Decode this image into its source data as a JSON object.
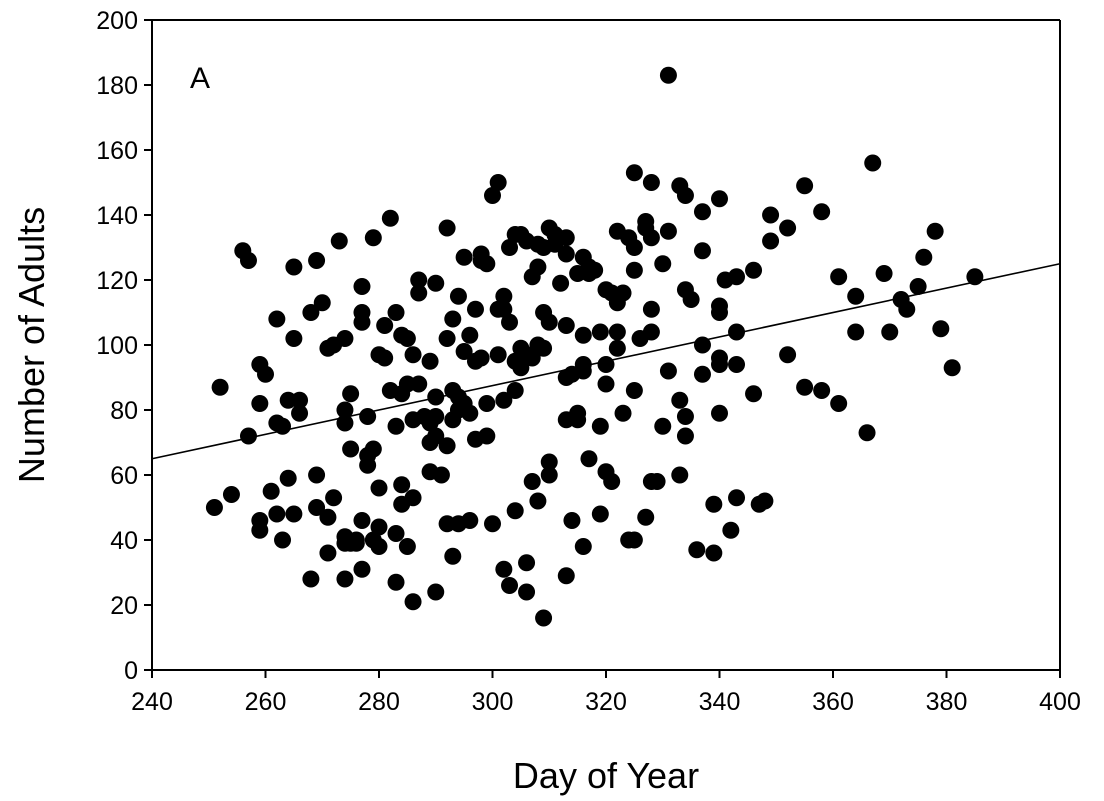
{
  "chart_data": {
    "type": "scatter",
    "panel_label": "A",
    "xlabel": "Day of Year",
    "ylabel": "Number of Adults",
    "xlim": [
      240,
      400
    ],
    "ylim": [
      0,
      200
    ],
    "x_ticks": [
      "240",
      "260",
      "280",
      "300",
      "320",
      "340",
      "360",
      "380",
      "400"
    ],
    "y_ticks": [
      "0",
      "20",
      "40",
      "60",
      "80",
      "100",
      "120",
      "140",
      "160",
      "180",
      "200"
    ],
    "grid": false,
    "legend": "none",
    "marker_color": "#000000",
    "trendline": {
      "x": [
        240,
        400
      ],
      "y": [
        65,
        125
      ]
    },
    "points": [
      [
        251,
        50
      ],
      [
        252,
        87
      ],
      [
        254,
        54
      ],
      [
        256,
        129
      ],
      [
        257,
        126
      ],
      [
        257,
        72
      ],
      [
        259,
        94
      ],
      [
        259,
        82
      ],
      [
        259,
        46
      ],
      [
        259,
        43
      ],
      [
        260,
        91
      ],
      [
        261,
        55
      ],
      [
        262,
        108
      ],
      [
        262,
        76
      ],
      [
        262,
        48
      ],
      [
        263,
        75
      ],
      [
        263,
        40
      ],
      [
        264,
        83
      ],
      [
        264,
        59
      ],
      [
        265,
        124
      ],
      [
        265,
        102
      ],
      [
        265,
        48
      ],
      [
        266,
        83
      ],
      [
        266,
        79
      ],
      [
        268,
        28
      ],
      [
        268,
        110
      ],
      [
        269,
        126
      ],
      [
        269,
        60
      ],
      [
        269,
        50
      ],
      [
        270,
        113
      ],
      [
        271,
        99
      ],
      [
        271,
        47
      ],
      [
        271,
        36
      ],
      [
        272,
        100
      ],
      [
        272,
        53
      ],
      [
        273,
        132
      ],
      [
        274,
        102
      ],
      [
        274,
        80
      ],
      [
        274,
        76
      ],
      [
        274,
        41
      ],
      [
        274,
        39
      ],
      [
        274,
        28
      ],
      [
        275,
        85
      ],
      [
        275,
        68
      ],
      [
        275,
        39
      ],
      [
        276,
        40
      ],
      [
        276,
        39
      ],
      [
        277,
        118
      ],
      [
        277,
        110
      ],
      [
        277,
        107
      ],
      [
        277,
        46
      ],
      [
        277,
        31
      ],
      [
        278,
        78
      ],
      [
        278,
        66
      ],
      [
        278,
        63
      ],
      [
        279,
        133
      ],
      [
        279,
        68
      ],
      [
        279,
        40
      ],
      [
        280,
        97
      ],
      [
        280,
        56
      ],
      [
        280,
        44
      ],
      [
        280,
        38
      ],
      [
        281,
        106
      ],
      [
        281,
        96
      ],
      [
        282,
        139
      ],
      [
        282,
        86
      ],
      [
        283,
        110
      ],
      [
        283,
        75
      ],
      [
        283,
        42
      ],
      [
        283,
        27
      ],
      [
        284,
        103
      ],
      [
        284,
        85
      ],
      [
        284,
        57
      ],
      [
        284,
        51
      ],
      [
        285,
        102
      ],
      [
        285,
        88
      ],
      [
        285,
        38
      ],
      [
        286,
        97
      ],
      [
        286,
        77
      ],
      [
        286,
        53
      ],
      [
        286,
        21
      ],
      [
        287,
        120
      ],
      [
        287,
        116
      ],
      [
        287,
        88
      ],
      [
        288,
        78
      ],
      [
        289,
        95
      ],
      [
        289,
        76
      ],
      [
        289,
        70
      ],
      [
        289,
        61
      ],
      [
        290,
        119
      ],
      [
        290,
        84
      ],
      [
        290,
        78
      ],
      [
        290,
        72
      ],
      [
        290,
        24
      ],
      [
        291,
        60
      ],
      [
        292,
        136
      ],
      [
        292,
        102
      ],
      [
        292,
        69
      ],
      [
        292,
        45
      ],
      [
        293,
        108
      ],
      [
        293,
        86
      ],
      [
        293,
        77
      ],
      [
        293,
        35
      ],
      [
        294,
        115
      ],
      [
        294,
        84
      ],
      [
        294,
        80
      ],
      [
        294,
        45
      ],
      [
        295,
        127
      ],
      [
        295,
        98
      ],
      [
        295,
        82
      ],
      [
        296,
        103
      ],
      [
        296,
        79
      ],
      [
        296,
        46
      ],
      [
        297,
        111
      ],
      [
        297,
        95
      ],
      [
        297,
        71
      ],
      [
        298,
        128
      ],
      [
        298,
        126
      ],
      [
        298,
        96
      ],
      [
        299,
        125
      ],
      [
        299,
        82
      ],
      [
        299,
        72
      ],
      [
        300,
        146
      ],
      [
        300,
        45
      ],
      [
        301,
        150
      ],
      [
        301,
        111
      ],
      [
        301,
        97
      ],
      [
        302,
        115
      ],
      [
        302,
        111
      ],
      [
        302,
        83
      ],
      [
        302,
        31
      ],
      [
        303,
        130
      ],
      [
        303,
        107
      ],
      [
        303,
        26
      ],
      [
        304,
        134
      ],
      [
        304,
        95
      ],
      [
        304,
        86
      ],
      [
        304,
        49
      ],
      [
        305,
        134
      ],
      [
        305,
        99
      ],
      [
        305,
        93
      ],
      [
        306,
        132
      ],
      [
        306,
        97
      ],
      [
        306,
        24
      ],
      [
        306,
        33
      ],
      [
        307,
        121
      ],
      [
        307,
        96
      ],
      [
        307,
        58
      ],
      [
        308,
        131
      ],
      [
        308,
        124
      ],
      [
        308,
        100
      ],
      [
        308,
        52
      ],
      [
        309,
        130
      ],
      [
        309,
        110
      ],
      [
        309,
        99
      ],
      [
        309,
        16
      ],
      [
        310,
        136
      ],
      [
        310,
        107
      ],
      [
        310,
        64
      ],
      [
        310,
        60
      ],
      [
        311,
        134
      ],
      [
        311,
        131
      ],
      [
        312,
        119
      ],
      [
        313,
        133
      ],
      [
        313,
        128
      ],
      [
        313,
        106
      ],
      [
        313,
        90
      ],
      [
        313,
        77
      ],
      [
        313,
        29
      ],
      [
        314,
        91
      ],
      [
        314,
        46
      ],
      [
        315,
        122
      ],
      [
        315,
        79
      ],
      [
        315,
        77
      ],
      [
        316,
        127
      ],
      [
        316,
        103
      ],
      [
        316,
        94
      ],
      [
        316,
        92
      ],
      [
        316,
        38
      ],
      [
        317,
        124
      ],
      [
        317,
        122
      ],
      [
        317,
        65
      ],
      [
        318,
        123
      ],
      [
        319,
        104
      ],
      [
        319,
        75
      ],
      [
        319,
        48
      ],
      [
        320,
        117
      ],
      [
        320,
        94
      ],
      [
        320,
        88
      ],
      [
        320,
        61
      ],
      [
        321,
        116
      ],
      [
        321,
        58
      ],
      [
        322,
        135
      ],
      [
        322,
        113
      ],
      [
        322,
        104
      ],
      [
        322,
        99
      ],
      [
        323,
        116
      ],
      [
        323,
        79
      ],
      [
        324,
        133
      ],
      [
        324,
        40
      ],
      [
        325,
        153
      ],
      [
        325,
        130
      ],
      [
        325,
        123
      ],
      [
        325,
        86
      ],
      [
        325,
        40
      ],
      [
        326,
        102
      ],
      [
        327,
        138
      ],
      [
        327,
        136
      ],
      [
        327,
        47
      ],
      [
        328,
        150
      ],
      [
        328,
        133
      ],
      [
        328,
        111
      ],
      [
        328,
        104
      ],
      [
        328,
        58
      ],
      [
        329,
        58
      ],
      [
        330,
        125
      ],
      [
        330,
        75
      ],
      [
        331,
        183
      ],
      [
        331,
        135
      ],
      [
        331,
        92
      ],
      [
        333,
        149
      ],
      [
        333,
        83
      ],
      [
        333,
        60
      ],
      [
        334,
        146
      ],
      [
        334,
        117
      ],
      [
        334,
        78
      ],
      [
        334,
        72
      ],
      [
        335,
        114
      ],
      [
        336,
        37
      ],
      [
        337,
        141
      ],
      [
        337,
        129
      ],
      [
        337,
        100
      ],
      [
        337,
        91
      ],
      [
        339,
        51
      ],
      [
        339,
        36
      ],
      [
        340,
        145
      ],
      [
        340,
        112
      ],
      [
        340,
        110
      ],
      [
        340,
        96
      ],
      [
        340,
        94
      ],
      [
        340,
        79
      ],
      [
        341,
        120
      ],
      [
        342,
        43
      ],
      [
        343,
        121
      ],
      [
        343,
        104
      ],
      [
        343,
        94
      ],
      [
        343,
        53
      ],
      [
        346,
        123
      ],
      [
        346,
        85
      ],
      [
        347,
        51
      ],
      [
        348,
        52
      ],
      [
        349,
        140
      ],
      [
        349,
        132
      ],
      [
        352,
        136
      ],
      [
        352,
        97
      ],
      [
        355,
        149
      ],
      [
        355,
        87
      ],
      [
        358,
        141
      ],
      [
        358,
        86
      ],
      [
        361,
        121
      ],
      [
        361,
        82
      ],
      [
        364,
        115
      ],
      [
        364,
        104
      ],
      [
        366,
        73
      ],
      [
        367,
        156
      ],
      [
        369,
        122
      ],
      [
        370,
        104
      ],
      [
        372,
        114
      ],
      [
        373,
        111
      ],
      [
        375,
        118
      ],
      [
        376,
        127
      ],
      [
        378,
        135
      ],
      [
        379,
        105
      ],
      [
        381,
        93
      ],
      [
        385,
        121
      ]
    ]
  }
}
